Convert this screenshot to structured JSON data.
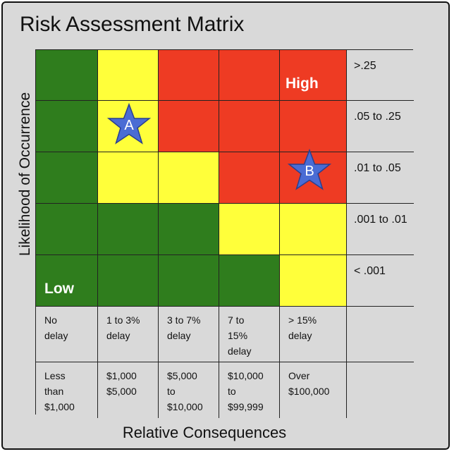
{
  "title": "Risk Assessment Matrix",
  "y_axis_label": "Likelihood of Occurrence",
  "x_axis_label": "Relative Consequences",
  "colors": {
    "green": "#2f7d1d",
    "yellow": "#ffff3a",
    "red": "#ee3b23",
    "grey": "#d9d9d9"
  },
  "likelihood_levels": [
    ">.25",
    ".05 to .25",
    ".01 to .05",
    ".001 to .01",
    "< .001"
  ],
  "grid": [
    [
      "green",
      "yellow",
      "red",
      "red",
      "red"
    ],
    [
      "green",
      "yellow",
      "red",
      "red",
      "red"
    ],
    [
      "green",
      "yellow",
      "yellow",
      "red",
      "red"
    ],
    [
      "green",
      "green",
      "green",
      "yellow",
      "yellow"
    ],
    [
      "green",
      "green",
      "green",
      "green",
      "yellow"
    ]
  ],
  "schedule_row": [
    "No\ndelay",
    "1 to 3%\ndelay",
    "3 to 7%\ndelay",
    "7 to\n15%\ndelay",
    "> 15%\ndelay"
  ],
  "cost_row": [
    "Less\nthan\n$1,000",
    "$1,000\n$5,000",
    "$5,000\nto\n$10,000",
    "$10,000\nto\n$99,999",
    "Over\n$100,000"
  ],
  "zone_labels": {
    "high": "High",
    "low": "Low"
  },
  "markers": [
    {
      "label": "A",
      "row": 1,
      "col": 1,
      "color": "#4a6cd4"
    },
    {
      "label": "B",
      "row": 2,
      "col": 4,
      "color": "#4a6cd4"
    }
  ]
}
